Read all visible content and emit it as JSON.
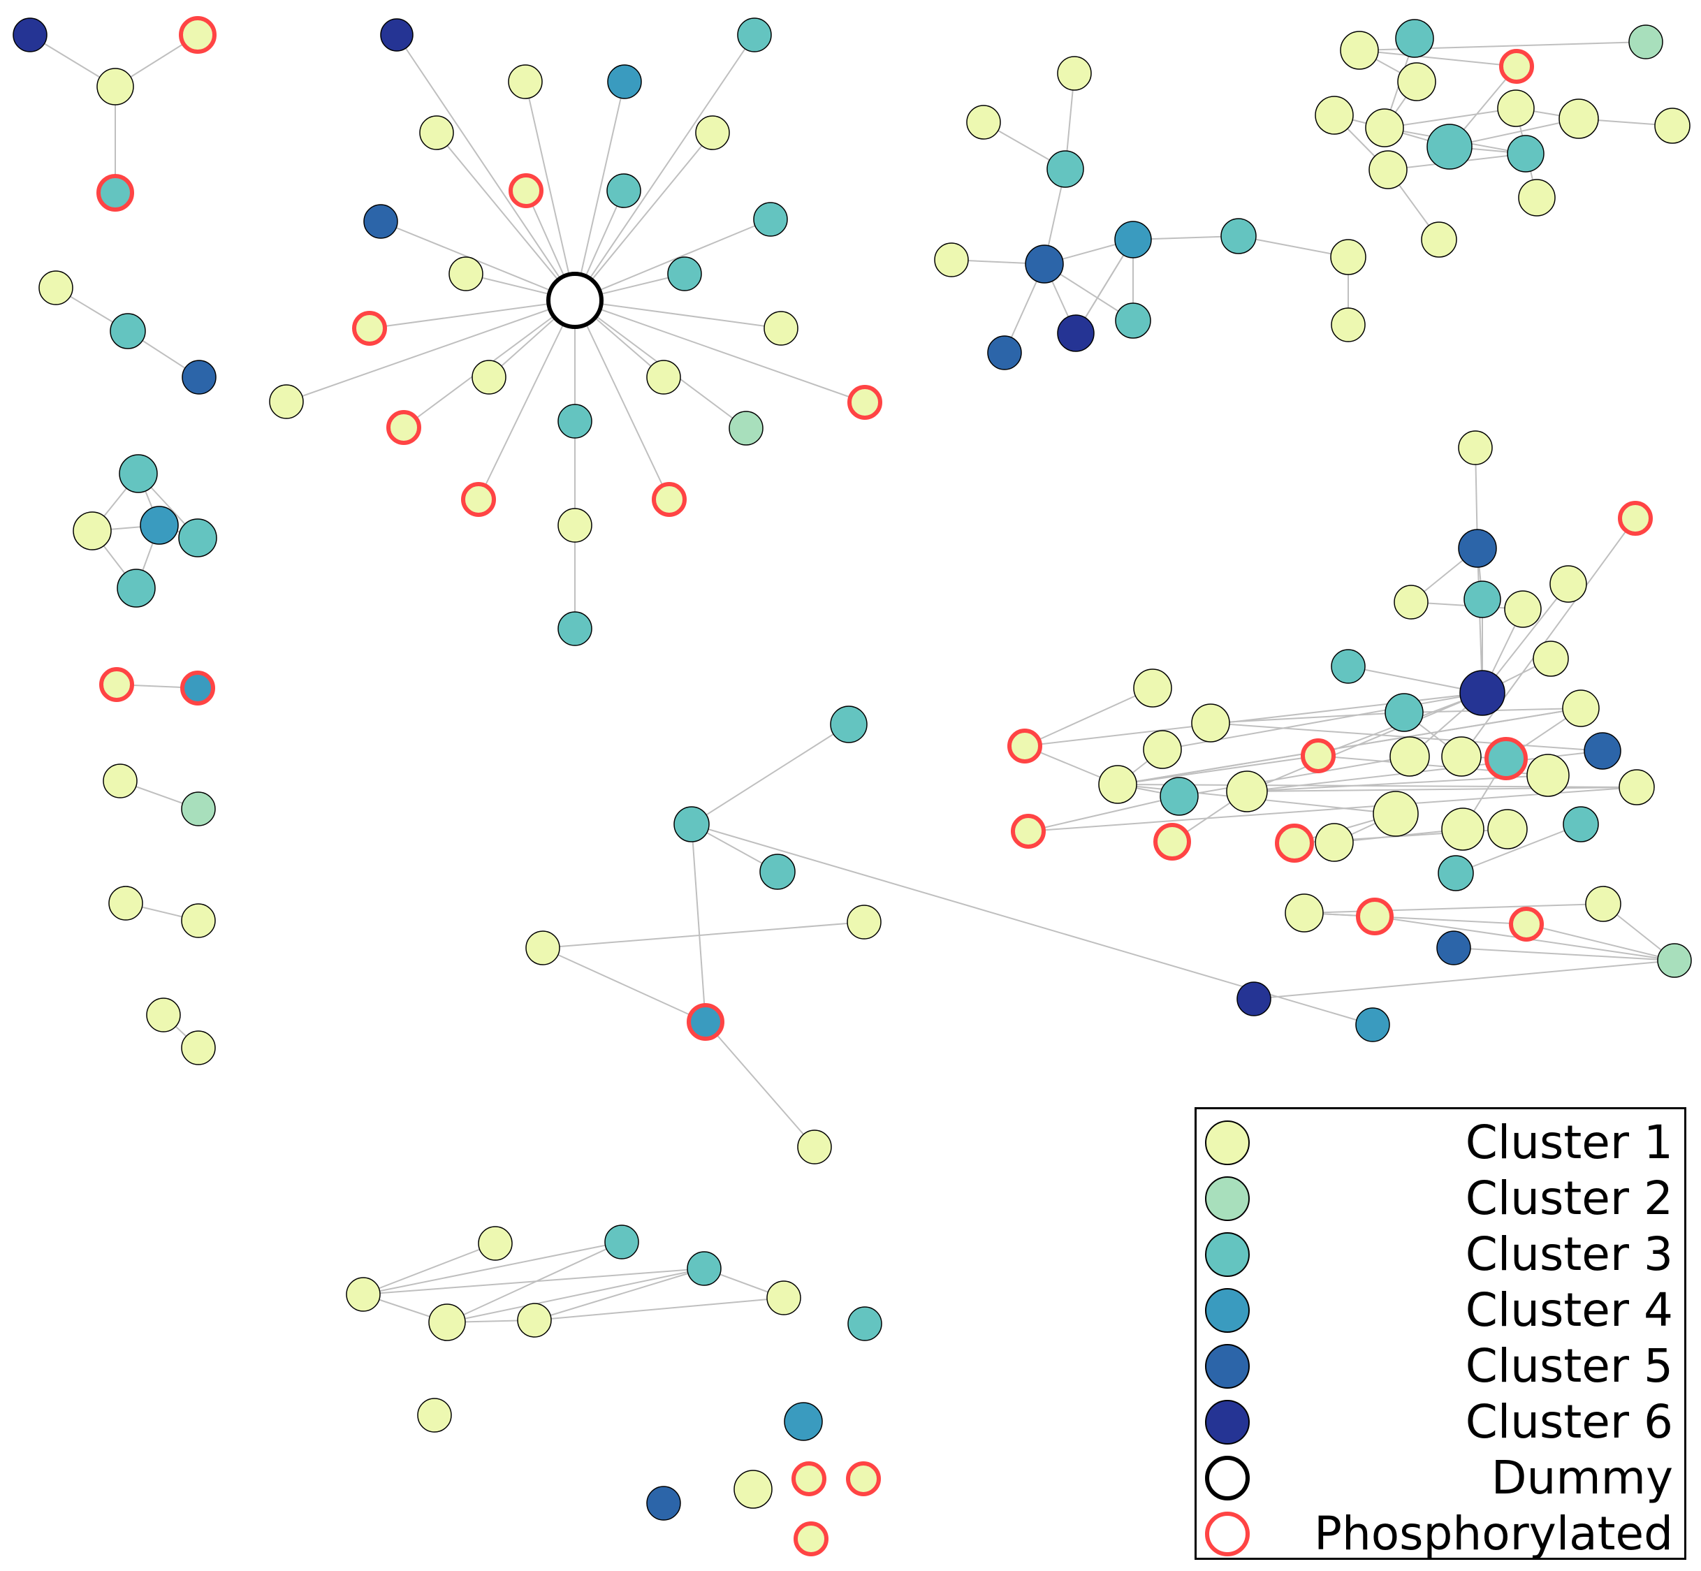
{
  "colors": {
    "cluster1": "#edf8b1",
    "cluster2": "#a8dfbc",
    "cluster3": "#64c4c0",
    "cluster4": "#3a9bbf",
    "cluster5": "#2c65a9",
    "cluster6": "#253494",
    "dummy_fill": "#ffffff",
    "phospho_ring": "#ff4444",
    "edge": "#bfbfbf"
  },
  "legend": {
    "items": [
      {
        "label": "Cluster 1",
        "color": "#edf8b1",
        "ring": "#000000"
      },
      {
        "label": "Cluster 2",
        "color": "#a8dfbc",
        "ring": "#000000"
      },
      {
        "label": "Cluster 3",
        "color": "#64c4c0",
        "ring": "#000000"
      },
      {
        "label": "Cluster 4",
        "color": "#3a9bbf",
        "ring": "#000000"
      },
      {
        "label": "Cluster 5",
        "color": "#2c65a9",
        "ring": "#000000"
      },
      {
        "label": "Cluster 6",
        "color": "#253494",
        "ring": "#000000"
      },
      {
        "label": "Dummy",
        "color": "#ffffff",
        "ring": "#000000"
      },
      {
        "label": "Phosphorylated",
        "color": "#ffffff",
        "ring": "#ff4444"
      }
    ]
  }
}
